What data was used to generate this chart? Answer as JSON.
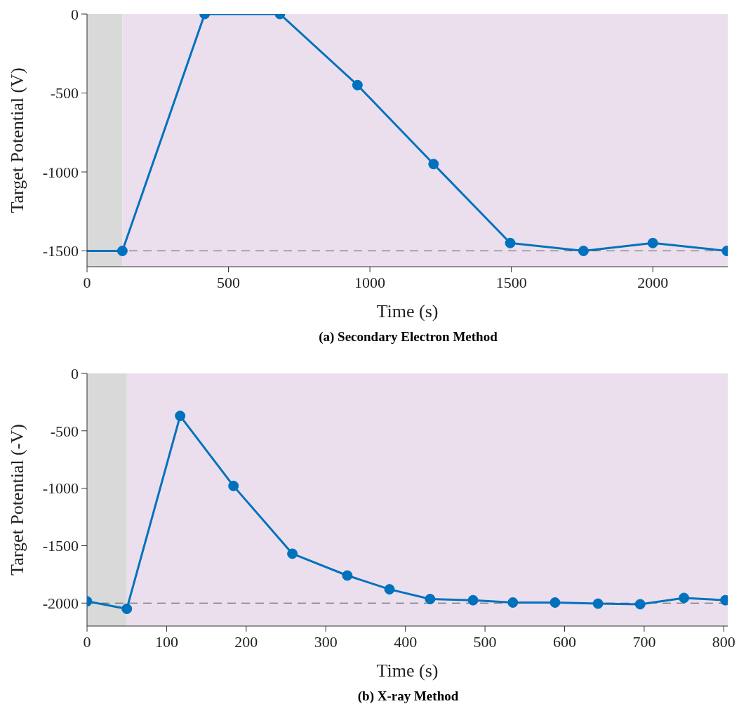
{
  "chart_data": [
    {
      "type": "line",
      "title": "(a) Secondary Electron Method",
      "xlabel": "Time (s)",
      "ylabel": "Target Potential (V)",
      "xlim": [
        0,
        2265
      ],
      "xticks": [
        0,
        500,
        1000,
        1500,
        2000
      ],
      "ylim": [
        -1600,
        0
      ],
      "yticks": [
        -1500,
        -1000,
        -500,
        0
      ],
      "marker": "circle",
      "line_style": "solid",
      "series": [
        {
          "color": "#0072bd",
          "marker": "none",
          "x": [
            0,
            110
          ],
          "values": [
            -1500,
            -1500
          ]
        },
        {
          "color": "#0072bd",
          "x": [
            125,
            416,
            682,
            956,
            1225,
            1496,
            1755,
            2000,
            2262
          ],
          "values": [
            -1500,
            0,
            0,
            -450,
            -950,
            -1450,
            -1500,
            -1450,
            -1500
          ]
        }
      ],
      "bands": [
        {
          "axis": "x",
          "from": 0,
          "to": 125,
          "color": "#d9d9d9"
        },
        {
          "axis": "x",
          "from": 125,
          "to": 2265,
          "color": "#ebdfed"
        }
      ],
      "ref_lines": [
        {
          "axis": "y",
          "value": -1500,
          "color": "#555555",
          "line_style": "dashed"
        }
      ]
    },
    {
      "type": "line",
      "title": "(b) X-ray Method",
      "xlabel": "Time (s)",
      "ylabel": "Target Potential (-V)",
      "xlim": [
        0,
        805
      ],
      "xticks": [
        0,
        100,
        200,
        300,
        400,
        500,
        600,
        700,
        800
      ],
      "ylim": [
        -2200,
        0
      ],
      "yticks": [
        -2000,
        -1500,
        -1000,
        -500,
        0
      ],
      "marker": "circle",
      "line_style": "solid",
      "series": [
        {
          "color": "#0072bd",
          "x": [
            0,
            50,
            117,
            184,
            258,
            327,
            380,
            431,
            485,
            535,
            588,
            642,
            695,
            750,
            802
          ],
          "values": [
            -1985,
            -2050,
            -370,
            -980,
            -1570,
            -1760,
            -1880,
            -1965,
            -1975,
            -1995,
            -1995,
            -2005,
            -2010,
            -1955,
            -1975
          ]
        }
      ],
      "bands": [
        {
          "axis": "x",
          "from": 0,
          "to": 50,
          "color": "#d9d9d9"
        },
        {
          "axis": "x",
          "from": 50,
          "to": 805,
          "color": "#ebdfed"
        }
      ],
      "ref_lines": [
        {
          "axis": "y",
          "value": -2000,
          "color": "#555555",
          "line_style": "dashed"
        }
      ]
    }
  ]
}
